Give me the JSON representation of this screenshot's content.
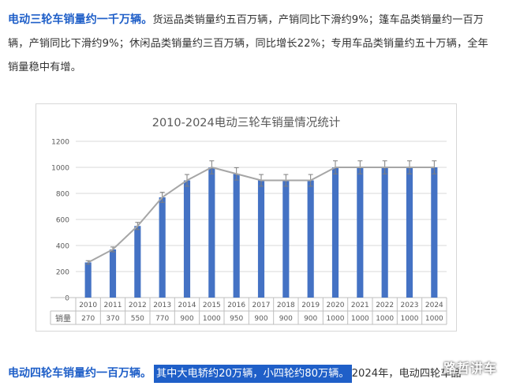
{
  "paragraph1": {
    "lead": "电动三轮车销量约一千万辆。",
    "body": "货运品类销量约五百万辆，产销同比下滑约9%；篷车品类销量约一百万辆，产销同比下滑约9%；休闲品类销量约三百万辆，同比增长22%；专用车品类销量约五十万辆，全年销量稳中有增。"
  },
  "chart_data": {
    "type": "bar",
    "title": "2010-2024电动三轮车销量情况统计",
    "table_header": "销量",
    "categories": [
      "2010",
      "2011",
      "2012",
      "2013",
      "2014",
      "2015",
      "2016",
      "2017",
      "2018",
      "2019",
      "2020",
      "2021",
      "2022",
      "2023",
      "2024"
    ],
    "values": [
      270,
      370,
      550,
      770,
      900,
      1000,
      950,
      900,
      900,
      900,
      1000,
      1000,
      1000,
      1000,
      1000
    ],
    "ylim": [
      0,
      1200
    ],
    "yticks": [
      0,
      200,
      400,
      600,
      800,
      1000,
      1200
    ],
    "grid": true,
    "overlay": "trend line with error bars",
    "colors": {
      "bar": "#4472c4",
      "line": "#a6a6a6",
      "grid": "#d9d9d9",
      "text": "#595959"
    }
  },
  "paragraph2": {
    "lead": "电动四轮车销量约一百万辆。",
    "highlight": "其中大电轿约20万辆，小四轮约80万辆。",
    "rest": "2024年，电动四轮车品"
  },
  "watermark": "路哲讲车"
}
